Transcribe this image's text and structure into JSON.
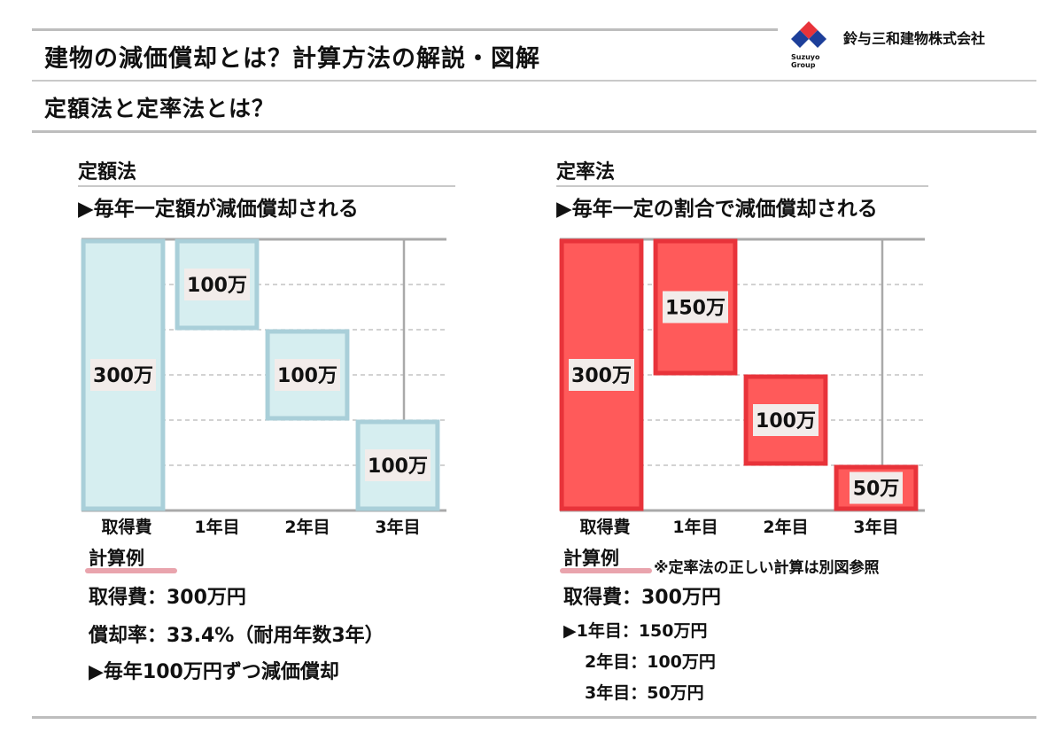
{
  "header": {
    "title": "建物の減価償却とは？計算方法の解説・図解",
    "subtitle": "定額法と定率法とは？",
    "company": "鈴与三和建物株式会社",
    "logo_sub_1": "Suzuyo",
    "logo_sub_2": "Group"
  },
  "left": {
    "heading": "定額法",
    "description": "▶毎年一定額が減価償却される",
    "calc_heading": "計算例",
    "calc_lines": [
      "取得費：300万円",
      "償却率：33.4%（耐用年数3年）",
      "▶毎年100万円ずつ減価償却"
    ]
  },
  "right": {
    "heading": "定率法",
    "description": "▶毎年一定の割合で減価償却される",
    "calc_heading": "計算例",
    "calc_note": "※定率法の正しい計算は別図参照",
    "calc_lines": [
      "取得費：300万円",
      "▶1年目：150万円",
      "2年目：100万円",
      "3年目：50万円"
    ]
  },
  "colors": {
    "fixed_fill": "#d6eef0",
    "fixed_stroke": "#a9cfd9",
    "rate_fill": "#ff5a5a",
    "rate_stroke": "#e8333a",
    "label_bg": "#f2ecea"
  },
  "chart_data": [
    {
      "type": "bar",
      "subtype": "waterfall",
      "categories": [
        "取得費",
        "1年目",
        "2年目",
        "3年目"
      ],
      "values": [
        300,
        100,
        100,
        100
      ],
      "value_labels": [
        "300万",
        "100万",
        "100万",
        "100万"
      ],
      "ylim": [
        0,
        300
      ],
      "grid": true
    },
    {
      "type": "bar",
      "subtype": "waterfall",
      "categories": [
        "取得費",
        "1年目",
        "2年目",
        "3年目"
      ],
      "values": [
        300,
        150,
        100,
        50
      ],
      "value_labels": [
        "300万",
        "150万",
        "100万",
        "50万"
      ],
      "ylim": [
        0,
        300
      ],
      "grid": true
    }
  ]
}
